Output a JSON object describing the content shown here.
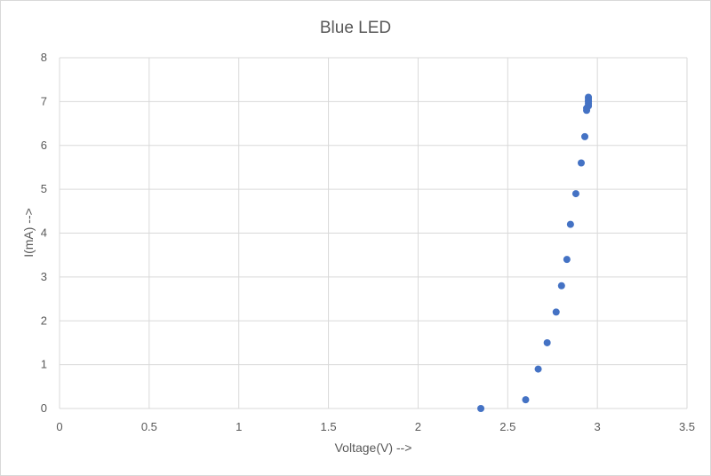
{
  "chart_data": {
    "type": "scatter",
    "title": "Blue LED",
    "xlabel": "Voltage(V) -->",
    "ylabel": "I(mA) -->",
    "xlim": [
      0,
      3.5
    ],
    "ylim": [
      0,
      8
    ],
    "xticks": [
      "0",
      "0.5",
      "1",
      "1.5",
      "2",
      "2.5",
      "3",
      "3.5"
    ],
    "yticks": [
      "0",
      "1",
      "2",
      "3",
      "4",
      "5",
      "6",
      "7",
      "8"
    ],
    "grid": true,
    "legend": "none",
    "marker_color": "#4472C4",
    "series": [
      {
        "x": [
          2.35,
          2.6,
          2.67,
          2.72,
          2.77,
          2.8,
          2.83,
          2.85,
          2.88,
          2.91,
          2.93,
          2.94,
          2.94,
          2.95,
          2.95,
          2.95,
          2.95,
          2.95,
          2.95
        ],
        "y": [
          0.0,
          0.2,
          0.9,
          1.5,
          2.2,
          2.8,
          3.4,
          4.2,
          4.9,
          5.6,
          6.2,
          6.8,
          6.85,
          6.9,
          6.95,
          7.0,
          7.02,
          7.07,
          7.1
        ]
      }
    ]
  }
}
